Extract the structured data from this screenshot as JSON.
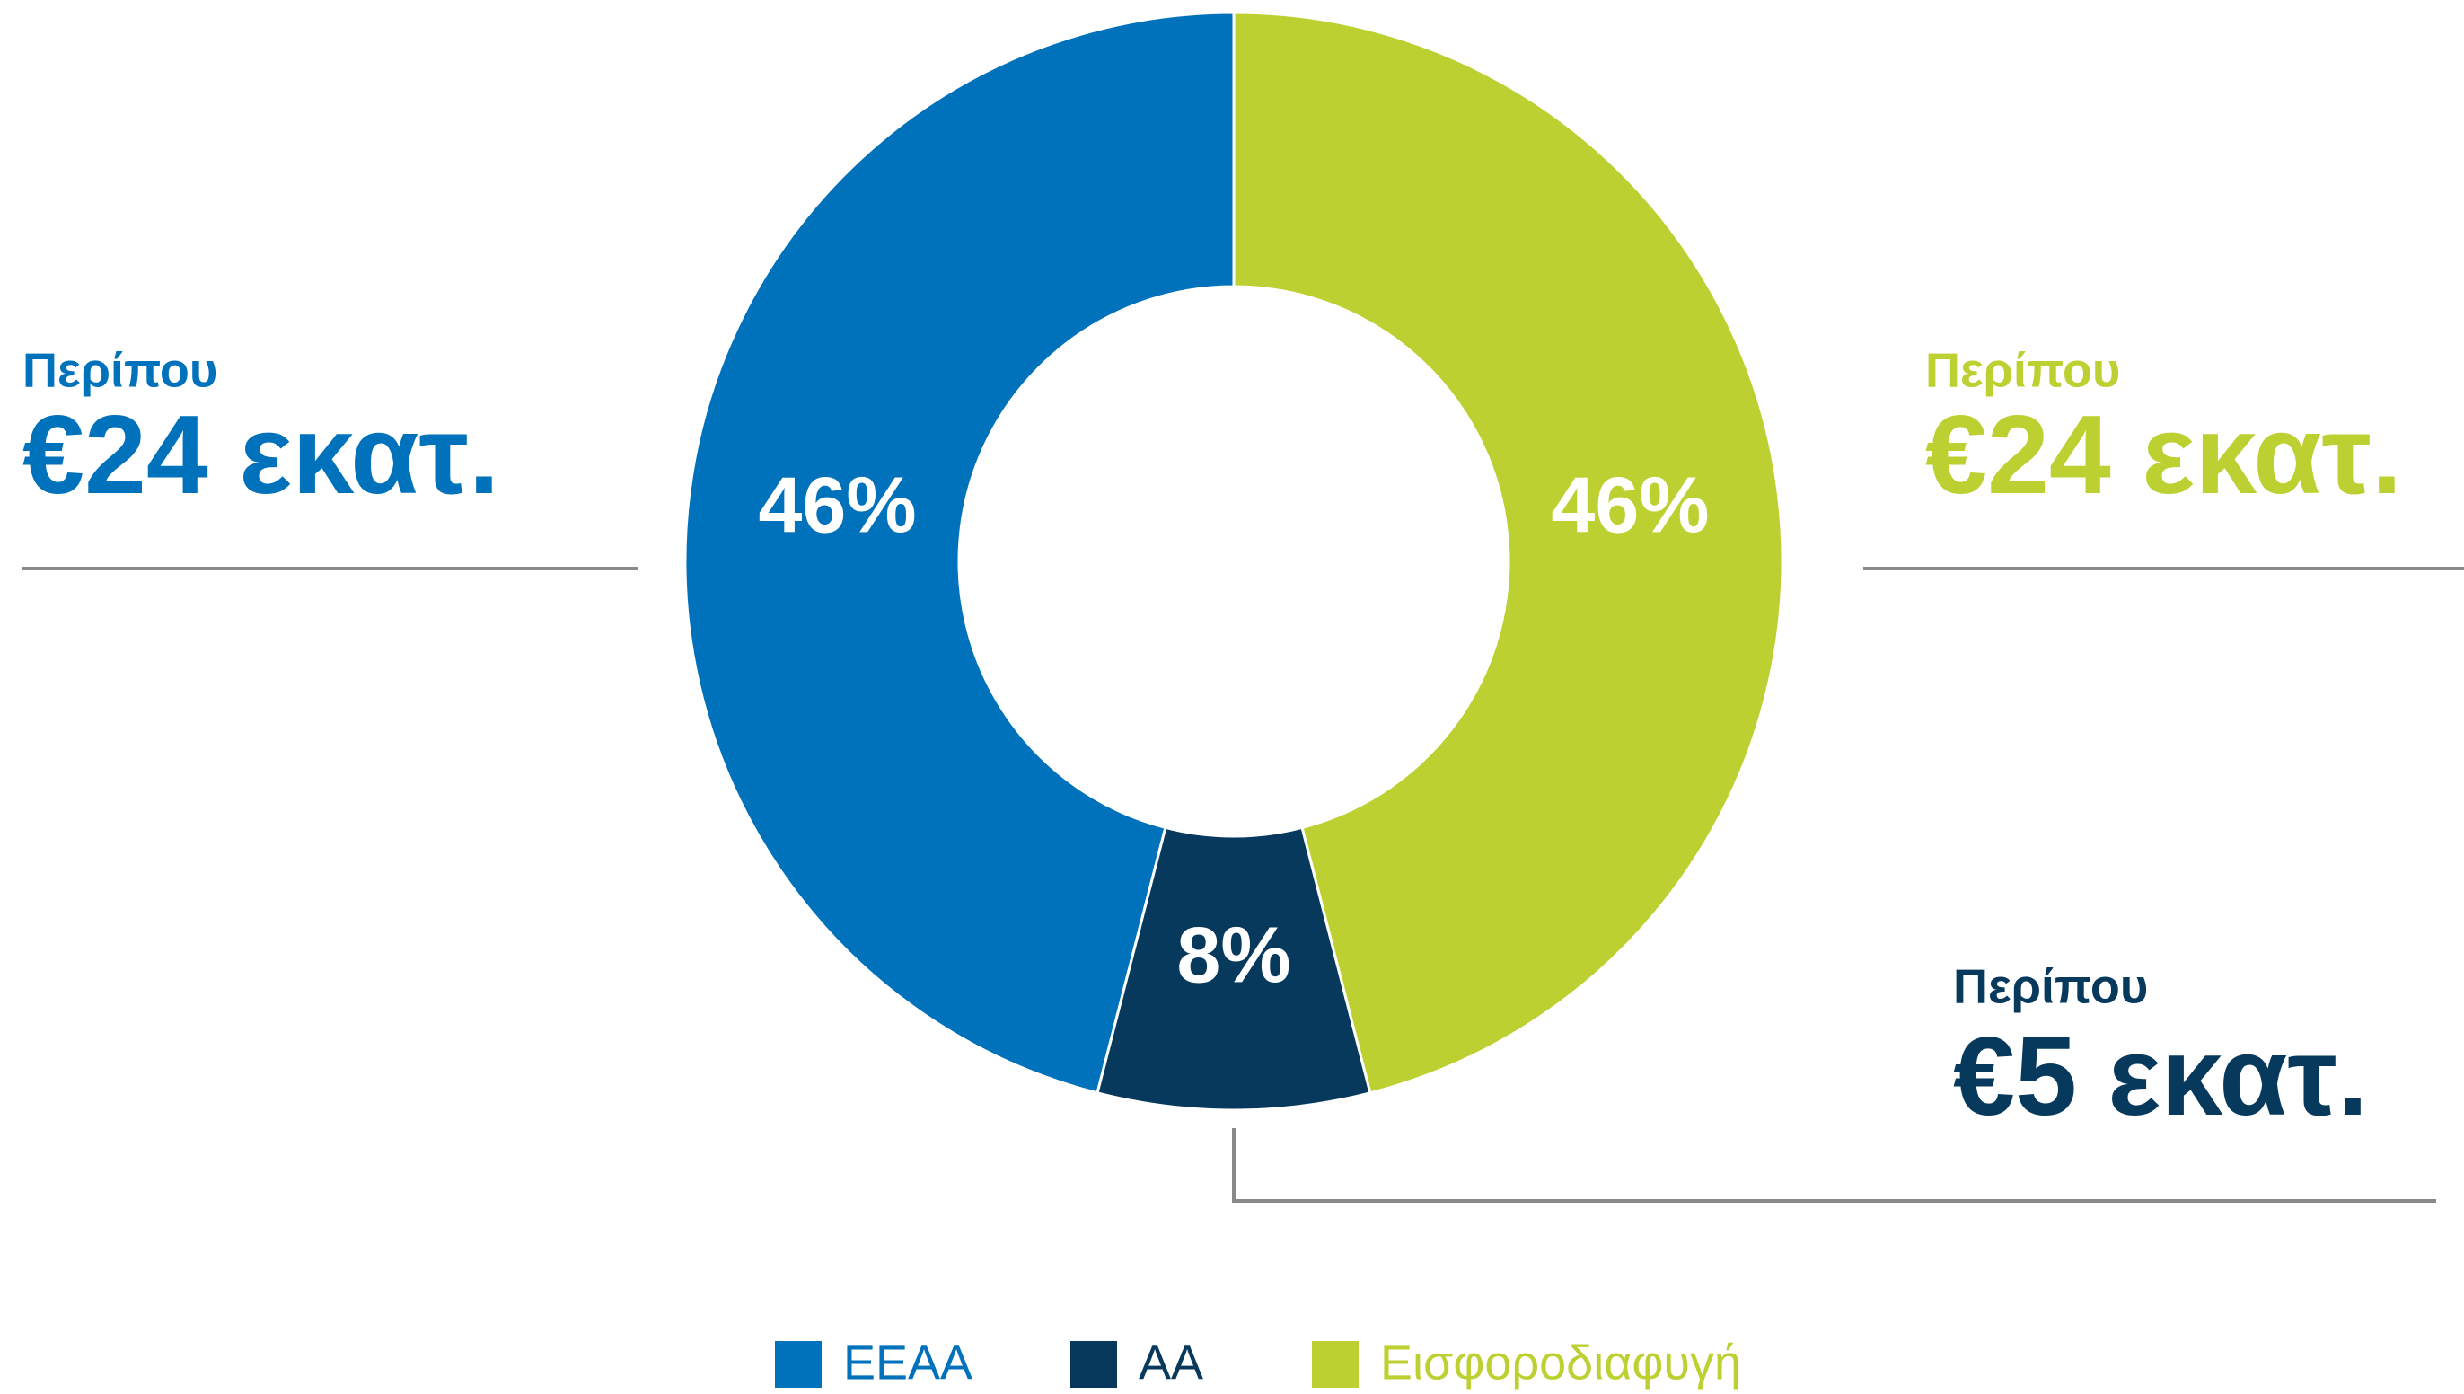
{
  "chart_data": {
    "type": "donut",
    "categories": [
      "ΕΕΑΑ",
      "ΑΑ",
      "Εισφοροδιαφυγή"
    ],
    "values": [
      46,
      8,
      46
    ],
    "value_labels": [
      "46%",
      "8%",
      "46%"
    ],
    "colors": [
      "#0071bb",
      "#06395c",
      "#bdd031"
    ],
    "legend": "bottom",
    "annotations": [
      {
        "lines": [
          "Περίπου",
          "€24 εκατ."
        ],
        "color": "#0071bb"
      },
      {
        "lines": [
          "Περίπου",
          "€5 εκατ."
        ],
        "color": "#06395c"
      },
      {
        "lines": [
          "Περίπου",
          "€24 εκατ."
        ],
        "color": "#bdd031"
      }
    ]
  }
}
